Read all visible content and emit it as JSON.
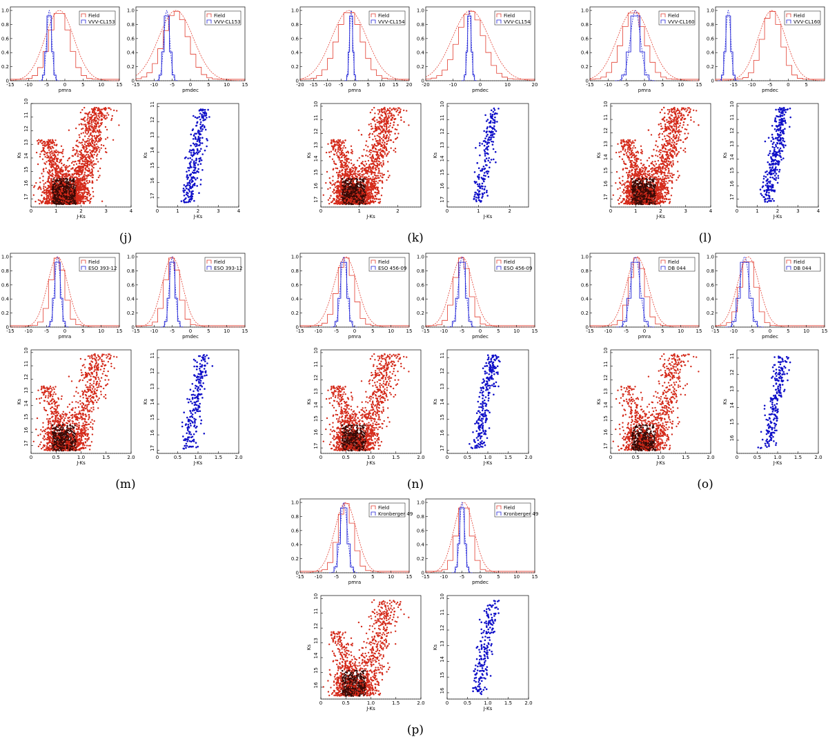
{
  "colors": {
    "field": "#e23b2e",
    "cluster": "#1c1fd6",
    "cmd_field_light": "#d42a1a",
    "cmd_field_dark": "#3a0a06",
    "cmd_cluster": "#1010c8"
  },
  "chart_data": [
    {
      "type": "group",
      "label": "(j)",
      "cluster": "VVV-CL153",
      "pmra": {
        "type": "histogram",
        "xlim": [
          -15,
          15
        ],
        "xticks": [
          -15,
          -10,
          -5,
          0,
          5,
          10,
          15
        ],
        "ylim": [
          0,
          1.05
        ],
        "yticks": [
          "0",
          "0.2",
          "0.4",
          "0.6",
          "0.8",
          "1.0"
        ],
        "xlabel": "pmra",
        "legend": [
          "Field",
          "VVV-CL153"
        ],
        "field_mu": -1.5,
        "field_sigma": 4.0,
        "cluster_mu": -4.3,
        "cluster_sigma": 0.7
      },
      "pmdec": {
        "type": "histogram",
        "xlim": [
          -15,
          15
        ],
        "xticks": [
          -15,
          -10,
          -5,
          0,
          5,
          10,
          15
        ],
        "ylim": [
          0,
          1.05
        ],
        "yticks": [
          "0",
          "0.2",
          "0.4",
          "0.6",
          "0.8",
          "1.0"
        ],
        "xlabel": "pmdec",
        "legend": [
          "Field",
          "VVV-CL153"
        ],
        "field_mu": -4.0,
        "field_sigma": 4.8,
        "cluster_mu": -6.5,
        "cluster_sigma": 0.8
      },
      "cmd_field": {
        "type": "scatter",
        "xlim": [
          0,
          4
        ],
        "xticks": [
          "0",
          "1",
          "2",
          "3",
          "4"
        ],
        "ylim": [
          10,
          17.6
        ],
        "yticks": [
          "10",
          "11",
          "12",
          "13",
          "14",
          "15",
          "16",
          "17"
        ],
        "xlabel": "J-Ks",
        "ylabel": "Ks",
        "n": 2600
      },
      "cmd_cluster": {
        "type": "scatter",
        "xlim": [
          0,
          4
        ],
        "xticks": [
          "0",
          "1",
          "2",
          "3",
          "4"
        ],
        "ylim": [
          10.8,
          17.6
        ],
        "yticks": [
          "11",
          "12",
          "13",
          "14",
          "15",
          "16",
          "17"
        ],
        "xlabel": "J-Ks",
        "ylabel": "Ks",
        "n": 260
      }
    },
    {
      "type": "group",
      "label": "(k)",
      "cluster": "VVV-CL154",
      "pmra": {
        "type": "histogram",
        "xlim": [
          -20,
          20
        ],
        "xticks": [
          -20,
          -15,
          -10,
          -5,
          0,
          5,
          10,
          15,
          20
        ],
        "ylim": [
          0,
          1.05
        ],
        "yticks": [
          "0",
          "0.2",
          "0.4",
          "0.6",
          "0.8",
          "1.0"
        ],
        "xlabel": "pmra",
        "legend": [
          "Field",
          "VVV-CL154"
        ],
        "field_mu": -2.0,
        "field_sigma": 6.5,
        "cluster_mu": -1.3,
        "cluster_sigma": 0.6
      },
      "pmdec": {
        "type": "histogram",
        "xlim": [
          -20,
          20
        ],
        "xticks": [
          -20,
          -10,
          0,
          10,
          20
        ],
        "ylim": [
          0,
          1.05
        ],
        "yticks": [
          "0",
          "0.2",
          "0.4",
          "0.6",
          "0.8",
          "1.0"
        ],
        "xlabel": "pmdec",
        "legend": [
          "Field",
          "VVV-CL154"
        ],
        "field_mu": -3.5,
        "field_sigma": 6.8,
        "cluster_mu": -4.0,
        "cluster_sigma": 0.7
      },
      "cmd_field": {
        "type": "scatter",
        "xlim": [
          0,
          2.6
        ],
        "xticks": [
          "0",
          "1",
          "2"
        ],
        "ylim": [
          9.8,
          17.4
        ],
        "yticks": [
          "10",
          "11",
          "12",
          "13",
          "14",
          "15",
          "16",
          "17"
        ],
        "xlabel": "J-Ks",
        "ylabel": "Ks",
        "n": 2600
      },
      "cmd_cluster": {
        "type": "scatter",
        "xlim": [
          0,
          2.6
        ],
        "xticks": [
          "0",
          "1",
          "2"
        ],
        "ylim": [
          9.8,
          17.4
        ],
        "yticks": [
          "10",
          "11",
          "12",
          "13",
          "14",
          "15",
          "16",
          "17"
        ],
        "xlabel": "J-Ks",
        "ylabel": "Ks",
        "n": 200
      }
    },
    {
      "type": "group",
      "label": "(l)",
      "cluster": "VVV-CL160",
      "pmra": {
        "type": "histogram",
        "xlim": [
          -15,
          15
        ],
        "xticks": [
          -15,
          -10,
          -5,
          0,
          5,
          10,
          15
        ],
        "ylim": [
          0,
          1.05
        ],
        "yticks": [
          "0",
          "0.2",
          "0.4",
          "0.6",
          "0.8",
          "1.0"
        ],
        "xlabel": "pmra",
        "legend": [
          "Field",
          "VVV-CL160"
        ],
        "field_mu": -3.0,
        "field_sigma": 4.5,
        "cluster_mu": -2.5,
        "cluster_sigma": 1.4
      },
      "pmdec": {
        "type": "histogram",
        "xlim": [
          -20,
          10
        ],
        "xticks": [
          -15,
          -10,
          -5,
          0,
          5
        ],
        "ylim": [
          0,
          1.05
        ],
        "yticks": [
          "0",
          "0.2",
          "0.4",
          "0.6",
          "0.8",
          "1.0"
        ],
        "xlabel": "pmdec",
        "legend": [
          "Field",
          "VVV-CL160"
        ],
        "field_mu": -4.5,
        "field_sigma": 3.8,
        "cluster_mu": -16.5,
        "cluster_sigma": 0.7
      },
      "cmd_field": {
        "type": "scatter",
        "xlim": [
          0,
          4
        ],
        "xticks": [
          "0",
          "1",
          "2",
          "3",
          "4"
        ],
        "ylim": [
          9.8,
          17.6
        ],
        "yticks": [
          "10",
          "11",
          "12",
          "13",
          "14",
          "15",
          "16",
          "17"
        ],
        "xlabel": "J-Ks",
        "ylabel": "Ks",
        "n": 2600
      },
      "cmd_cluster": {
        "type": "scatter",
        "xlim": [
          0,
          4
        ],
        "xticks": [
          "0",
          "1",
          "2",
          "3",
          "4"
        ],
        "ylim": [
          9.8,
          17.6
        ],
        "yticks": [
          "10",
          "11",
          "12",
          "13",
          "14",
          "15",
          "16",
          "17"
        ],
        "xlabel": "J-Ks",
        "ylabel": "Ks",
        "n": 330
      }
    },
    {
      "type": "group",
      "label": "(m)",
      "cluster": "ESO 393-12",
      "pmra": {
        "type": "histogram",
        "xlim": [
          -15,
          15
        ],
        "xticks": [
          -15,
          -10,
          -5,
          0,
          5,
          10,
          15
        ],
        "ylim": [
          0,
          1.05
        ],
        "yticks": [
          "0",
          "0.2",
          "0.4",
          "0.6",
          "0.8",
          "1.0"
        ],
        "xlabel": "pmra",
        "legend": [
          "Field",
          "ESO 393-12"
        ],
        "field_mu": -2.0,
        "field_sigma": 2.8,
        "cluster_mu": -2.0,
        "cluster_sigma": 0.8
      },
      "pmdec": {
        "type": "histogram",
        "xlim": [
          -15,
          15
        ],
        "xticks": [
          -15,
          -10,
          -5,
          0,
          5,
          10,
          15
        ],
        "ylim": [
          0,
          1.05
        ],
        "yticks": [
          "0",
          "0.2",
          "0.4",
          "0.6",
          "0.8",
          "1.0"
        ],
        "xlabel": "pmdec",
        "legend": [
          "Field",
          "ESO 393-12"
        ],
        "field_mu": -5.0,
        "field_sigma": 2.8,
        "cluster_mu": -5.0,
        "cluster_sigma": 0.8
      },
      "cmd_field": {
        "type": "scatter",
        "xlim": [
          0,
          2
        ],
        "xticks": [
          "0",
          "0.5",
          "1.0",
          "1.5",
          "2.0"
        ],
        "ylim": [
          9.8,
          17.6
        ],
        "yticks": [
          "10",
          "11",
          "12",
          "13",
          "14",
          "15",
          "16",
          "17"
        ],
        "xlabel": "J-Ks",
        "ylabel": "Ks",
        "n": 1600
      },
      "cmd_cluster": {
        "type": "scatter",
        "xlim": [
          0,
          2
        ],
        "xticks": [
          "0",
          "0.5",
          "1.0",
          "1.5",
          "2.0"
        ],
        "ylim": [
          10.5,
          17.2
        ],
        "yticks": [
          "11",
          "12",
          "13",
          "14",
          "15",
          "16",
          "17"
        ],
        "xlabel": "J-Ks",
        "ylabel": "Ks",
        "n": 220
      }
    },
    {
      "type": "group",
      "label": "(n)",
      "cluster": "ESO 456-09",
      "pmra": {
        "type": "histogram",
        "xlim": [
          -15,
          15
        ],
        "xticks": [
          -15,
          -10,
          -5,
          0,
          5,
          10,
          15
        ],
        "ylim": [
          0,
          1.05
        ],
        "yticks": [
          "0",
          "0.2",
          "0.4",
          "0.6",
          "0.8",
          "1.0"
        ],
        "xlabel": "pmra",
        "legend": [
          "Field",
          "ESO 456-09"
        ],
        "field_mu": -2.5,
        "field_sigma": 3.2,
        "cluster_mu": -3.0,
        "cluster_sigma": 0.9
      },
      "pmdec": {
        "type": "histogram",
        "xlim": [
          -15,
          15
        ],
        "xticks": [
          -15,
          -10,
          -5,
          0,
          5,
          10,
          15
        ],
        "ylim": [
          0,
          1.05
        ],
        "yticks": [
          "0",
          "0.2",
          "0.4",
          "0.6",
          "0.8",
          "1.0"
        ],
        "xlabel": "pmdec",
        "legend": [
          "Field",
          "ESO 456-09"
        ],
        "field_mu": -5.0,
        "field_sigma": 3.0,
        "cluster_mu": -5.0,
        "cluster_sigma": 1.0
      },
      "cmd_field": {
        "type": "scatter",
        "xlim": [
          0,
          2
        ],
        "xticks": [
          "0",
          "0.5",
          "1.0",
          "1.5",
          "2.0"
        ],
        "ylim": [
          9.8,
          17.4
        ],
        "yticks": [
          "10",
          "11",
          "12",
          "13",
          "14",
          "15",
          "16",
          "17"
        ],
        "xlabel": "J-Ks",
        "ylabel": "Ks",
        "n": 1600
      },
      "cmd_cluster": {
        "type": "scatter",
        "xlim": [
          0,
          2
        ],
        "xticks": [
          "0",
          "0.5",
          "1.0",
          "1.5",
          "2.0"
        ],
        "ylim": [
          10.5,
          17.2
        ],
        "yticks": [
          "11",
          "12",
          "13",
          "14",
          "15",
          "16",
          "17"
        ],
        "xlabel": "J-Ks",
        "ylabel": "Ks",
        "n": 260
      }
    },
    {
      "type": "group",
      "label": "(o)",
      "cluster": "DB 044",
      "pmra": {
        "type": "histogram",
        "xlim": [
          -15,
          15
        ],
        "xticks": [
          -15,
          -10,
          -5,
          0,
          5,
          10,
          15
        ],
        "ylim": [
          0,
          1.05
        ],
        "yticks": [
          "0",
          "0.2",
          "0.4",
          "0.6",
          "0.8",
          "1.0"
        ],
        "xlabel": "pmra",
        "legend": [
          "Field",
          "DB 044"
        ],
        "field_mu": -2.0,
        "field_sigma": 3.0,
        "cluster_mu": -2.5,
        "cluster_sigma": 1.3
      },
      "pmdec": {
        "type": "histogram",
        "xlim": [
          -15,
          15
        ],
        "xticks": [
          -15,
          -10,
          -5,
          0,
          5,
          10,
          15
        ],
        "ylim": [
          0,
          1.05
        ],
        "yticks": [
          "0",
          "0.2",
          "0.4",
          "0.6",
          "0.8",
          "1.0"
        ],
        "xlabel": "pmdec",
        "legend": [
          "Field",
          "DB 044"
        ],
        "field_mu": -6.0,
        "field_sigma": 3.0,
        "cluster_mu": -7.0,
        "cluster_sigma": 1.3
      },
      "cmd_field": {
        "type": "scatter",
        "xlim": [
          0,
          2
        ],
        "xticks": [
          "0",
          "0.5",
          "1.0",
          "1.5",
          "2.0"
        ],
        "ylim": [
          9.8,
          17.4
        ],
        "yticks": [
          "10",
          "11",
          "12",
          "13",
          "14",
          "15",
          "16",
          "17"
        ],
        "xlabel": "J-Ks",
        "ylabel": "Ks",
        "n": 1300
      },
      "cmd_cluster": {
        "type": "scatter",
        "xlim": [
          0,
          2
        ],
        "xticks": [
          "0",
          "0.5",
          "1.0",
          "1.5",
          "2.0"
        ],
        "ylim": [
          10.5,
          16.8
        ],
        "yticks": [
          "11",
          "12",
          "13",
          "14",
          "15",
          "16"
        ],
        "xlabel": "J-Ks",
        "ylabel": "Ks",
        "n": 220
      }
    },
    {
      "type": "group",
      "label": "(p)",
      "cluster": "Kronberger 49",
      "pmra": {
        "type": "histogram",
        "xlim": [
          -15,
          15
        ],
        "xticks": [
          -15,
          -10,
          -5,
          0,
          5,
          10,
          15
        ],
        "ylim": [
          0,
          1.05
        ],
        "yticks": [
          "0",
          "0.2",
          "0.4",
          "0.6",
          "0.8",
          "1.0"
        ],
        "xlabel": "pmra",
        "legend": [
          "Field",
          "Kronberger 49"
        ],
        "field_mu": -2.5,
        "field_sigma": 3.0,
        "cluster_mu": -3.0,
        "cluster_sigma": 1.0
      },
      "pmdec": {
        "type": "histogram",
        "xlim": [
          -15,
          15
        ],
        "xticks": [
          -15,
          -10,
          -5,
          0,
          5,
          10,
          15
        ],
        "ylim": [
          0,
          1.05
        ],
        "yticks": [
          "0",
          "0.2",
          "0.4",
          "0.6",
          "0.8",
          "1.0"
        ],
        "xlabel": "pmdec",
        "legend": [
          "Field",
          "Kronberger 49"
        ],
        "field_mu": -4.5,
        "field_sigma": 2.8,
        "cluster_mu": -5.0,
        "cluster_sigma": 0.7
      },
      "cmd_field": {
        "type": "scatter",
        "xlim": [
          0,
          2
        ],
        "xticks": [
          "0",
          "0.5",
          "1.0",
          "1.5",
          "2.0"
        ],
        "ylim": [
          9.8,
          16.8
        ],
        "yticks": [
          "10",
          "11",
          "12",
          "13",
          "14",
          "15",
          "16"
        ],
        "xlabel": "J-Ks",
        "ylabel": "Ks",
        "n": 1400
      },
      "cmd_cluster": {
        "type": "scatter",
        "xlim": [
          0,
          2
        ],
        "xticks": [
          "0",
          "0.5",
          "1.0",
          "1.5",
          "2.0"
        ],
        "ylim": [
          9.8,
          16.4
        ],
        "yticks": [
          "10",
          "11",
          "12",
          "13",
          "14",
          "15",
          "16"
        ],
        "xlabel": "J-Ks",
        "ylabel": "Ks",
        "n": 200
      }
    }
  ]
}
